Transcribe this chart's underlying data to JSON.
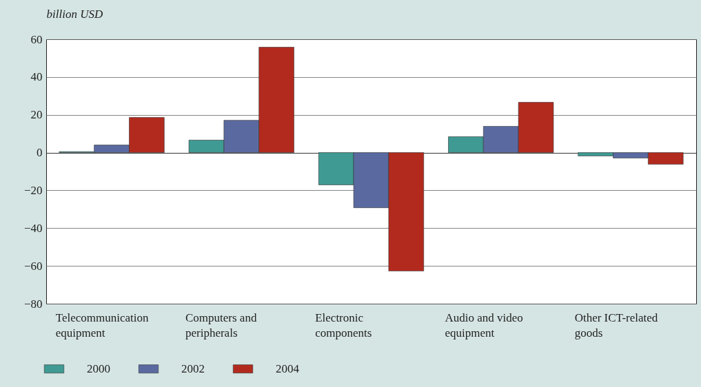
{
  "chart_data": {
    "type": "bar",
    "ylabel": "billion USD",
    "categories": [
      "Telecommunication equipment",
      "Computers and peripherals",
      "Electronic components",
      "Audio and video equipment",
      "Other ICT-related goods"
    ],
    "series": [
      {
        "name": "2000",
        "color": "#3f9a93",
        "values": [
          0.5,
          6.6,
          -17.1,
          8.4,
          -1.8
        ]
      },
      {
        "name": "2002",
        "color": "#5a6aa0",
        "values": [
          4,
          17.1,
          -29.2,
          13.9,
          -2.9
        ]
      },
      {
        "name": "2004",
        "color": "#b22a1e",
        "values": [
          18.6,
          55.8,
          -62.7,
          26.6,
          -6.2
        ]
      }
    ],
    "ylim": [
      -80,
      60
    ],
    "yticks": [
      -80,
      -60,
      -40,
      -20,
      0,
      20,
      40,
      60
    ],
    "grid": "y",
    "legend": "bottom left"
  }
}
